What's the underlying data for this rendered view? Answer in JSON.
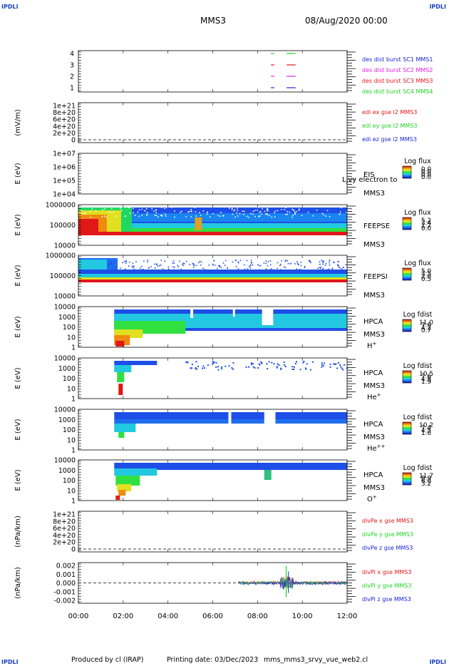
{
  "header": {
    "corner_tl": "IPDLI",
    "corner_tr": "IPDLI",
    "corner_bl": "IPDLI",
    "corner_br": "IPDLI",
    "spacecraft": "MMS3",
    "date": "08/Aug/2020 00:00"
  },
  "footer": {
    "producer": "Produced by cl (IRAP)",
    "printing": "Printing date: 03/Dec/2023",
    "script": "mms_mms3_srvy_vue_web2.cl"
  },
  "colors": {
    "red": "#e8141a",
    "green": "#1fd41f",
    "blue": "#1a22d6",
    "magenta": "#e020e0"
  },
  "chart_data": {
    "type": "heatmap",
    "x_ticks": [
      "00:00",
      "02:00",
      "04:00",
      "06:00",
      "08:00",
      "10:00",
      "12:00"
    ],
    "xlim_hours": [
      0,
      12
    ],
    "panels": [
      {
        "id": "burst",
        "type": "scatter",
        "ylabel": "",
        "y_ticks": [
          "1",
          "2",
          "3",
          "4"
        ],
        "legend": [
          {
            "text": "des dist burst SC1 MMS1",
            "color": "#1a22d6"
          },
          {
            "text": "des dist burst SC2 MMS2",
            "color": "#e020e0"
          },
          {
            "text": "des dist burst SC3 MMS3",
            "color": "#e8141a"
          },
          {
            "text": "des dist burst SC4 MMS4",
            "color": "#1fd41f"
          }
        ],
        "segments": [
          {
            "level": 4,
            "t0": 8.6,
            "t1": 8.75,
            "color": "#1fd41f"
          },
          {
            "level": 4,
            "t0": 9.3,
            "t1": 9.7,
            "color": "#1fd41f"
          },
          {
            "level": 3,
            "t0": 8.6,
            "t1": 8.75,
            "color": "#e8141a"
          },
          {
            "level": 3,
            "t0": 9.3,
            "t1": 9.7,
            "color": "#e8141a"
          },
          {
            "level": 2,
            "t0": 8.6,
            "t1": 8.75,
            "color": "#e020e0"
          },
          {
            "level": 2,
            "t0": 9.3,
            "t1": 9.7,
            "color": "#e020e0"
          },
          {
            "level": 1,
            "t0": 8.6,
            "t1": 8.75,
            "color": "#1a22d6"
          },
          {
            "level": 1,
            "t0": 9.3,
            "t1": 9.7,
            "color": "#1a22d6"
          }
        ]
      },
      {
        "id": "edi",
        "type": "line",
        "ylabel": "(mV/m)",
        "y_ticks": [
          "0",
          "2e+20",
          "4e+20",
          "6e+20",
          "8e+20",
          "1e+21"
        ],
        "legend": [
          {
            "text": "edi ex gse l2 MMS3",
            "color": "#e8141a"
          },
          {
            "text": "edi ey gse l2 MMS3",
            "color": "#1fd41f"
          },
          {
            "text": "edi ez gse l2 MMS3",
            "color": "#1a22d6"
          }
        ]
      },
      {
        "id": "eis",
        "type": "heatmap",
        "ylabel": "E (eV)",
        "y_ticks": [
          "1e+04",
          "1e+05",
          "1e+06",
          "1e+07"
        ],
        "instrument": "EIS",
        "spacecraft": "MMS3",
        "overlay_text": "Ljvy electron to",
        "colorbar_title": "Log flux",
        "colorbar_ticks": [
          "0.0",
          "0.0",
          "0.0",
          "0.0"
        ]
      },
      {
        "id": "feepse",
        "type": "heatmap",
        "ylabel": "E (eV)",
        "y_ticks": [
          "10000",
          "100000",
          "1000000"
        ],
        "instrument": "FEEPSE",
        "spacecraft": "MMS3",
        "colorbar_title": "Log flux",
        "colorbar_ticks": [
          "5.2",
          "3.4",
          "1.7",
          "0.0"
        ]
      },
      {
        "id": "feepsi",
        "type": "heatmap",
        "ylabel": "E (eV)",
        "y_ticks": [
          "10000",
          "100000",
          "1000000"
        ],
        "instrument": "FEEPSI",
        "spacecraft": "MMS3",
        "colorbar_title": "Log flux",
        "colorbar_ticks": [
          "5.0",
          "3.5",
          "2.0",
          "0.5"
        ]
      },
      {
        "id": "hpca_h",
        "type": "heatmap",
        "ylabel": "E (eV)",
        "y_ticks": [
          "1",
          "10",
          "100",
          "1000",
          "10000"
        ],
        "instrument": "HPCA",
        "spacecraft": "MMS3",
        "species": "H",
        "charge": "+",
        "colorbar_title": "Log fdist",
        "colorbar_ticks": [
          "11.0",
          "7.6",
          "4.2",
          "0.7"
        ]
      },
      {
        "id": "hpca_he",
        "type": "heatmap",
        "ylabel": "E (eV)",
        "y_ticks": [
          "1",
          "10",
          "100",
          "1000",
          "10000"
        ],
        "instrument": "HPCA",
        "spacecraft": "MMS3",
        "species": "He",
        "charge": "+",
        "colorbar_title": "Log fdist",
        "colorbar_ticks": [
          "10.5",
          "7.6",
          "4.8",
          "1.9"
        ]
      },
      {
        "id": "hpca_hepp",
        "type": "heatmap",
        "ylabel": "E (eV)",
        "y_ticks": [
          "1",
          "10",
          "100",
          "1000",
          "10000"
        ],
        "instrument": "HPCA",
        "spacecraft": "MMS3",
        "species": "He",
        "charge": "++",
        "colorbar_title": "Log fdist",
        "colorbar_ticks": [
          "10.2",
          "7.4",
          "4.5",
          "1.6"
        ]
      },
      {
        "id": "hpca_o",
        "type": "heatmap",
        "ylabel": "E (eV)",
        "y_ticks": [
          "1",
          "10",
          "100",
          "1000",
          "10000"
        ],
        "instrument": "HPCA",
        "spacecraft": "MMS3",
        "species": "O",
        "charge": "+",
        "colorbar_title": "Log fdist",
        "colorbar_ticks": [
          "11.7",
          "8.9",
          "6.0",
          "3.2"
        ]
      },
      {
        "id": "divpe",
        "type": "line",
        "ylabel": "(nPa/km)",
        "y_ticks": [
          "0",
          "2e+20",
          "4e+20",
          "6e+20",
          "8e+20",
          "1e+21"
        ],
        "legend": [
          {
            "text": "divPe x gse MMS3",
            "color": "#e8141a"
          },
          {
            "text": "divPe y gse MMS3",
            "color": "#1fd41f"
          },
          {
            "text": "divPe z gse MMS3",
            "color": "#1a22d6"
          }
        ]
      },
      {
        "id": "divpi",
        "type": "line",
        "ylabel": "(nPa/km)",
        "y_ticks": [
          "-0.002",
          "-0.001",
          "0.000",
          "0.001",
          "0.002"
        ],
        "legend": [
          {
            "text": "divPi x gse MMS3",
            "color": "#e8141a"
          },
          {
            "text": "divPi y gse MMS3",
            "color": "#1fd41f"
          },
          {
            "text": "divPi z gse MMS3",
            "color": "#1a22d6"
          }
        ]
      }
    ]
  }
}
